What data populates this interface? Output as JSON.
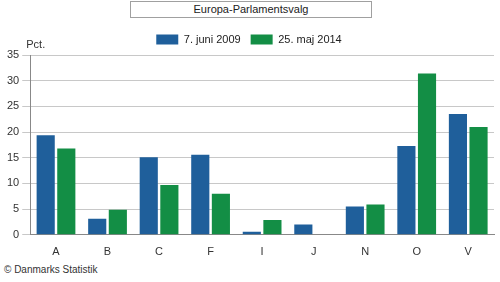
{
  "chart_data": {
    "type": "bar",
    "title": "Europa-Parlamentsvalg",
    "y_label": "Pct.",
    "source": "© Danmarks Statistik",
    "categories": [
      "A",
      "B",
      "C",
      "F",
      "I",
      "J",
      "N",
      "O",
      "V"
    ],
    "series": [
      {
        "name": "7. juni 2009",
        "color": "#1f5f9b",
        "values": [
          19.4,
          3.1,
          15.1,
          15.6,
          0.6,
          2.0,
          5.5,
          17.3,
          23.5
        ]
      },
      {
        "name": "25. maj 2014",
        "color": "#138e45",
        "values": [
          16.8,
          4.9,
          9.7,
          8.0,
          2.9,
          null,
          5.9,
          31.4,
          21.0
        ]
      }
    ],
    "ylim": [
      0,
      35
    ],
    "yticks": [
      0,
      5,
      10,
      15,
      20,
      25,
      30,
      35
    ],
    "grid": true,
    "legend": "top"
  }
}
